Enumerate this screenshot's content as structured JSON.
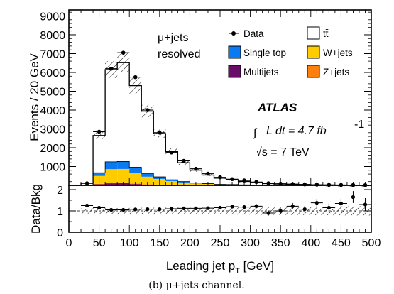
{
  "chart_data": [
    {
      "type": "bar",
      "ylabel": "Events / 20 GeV",
      "xlabel": "",
      "xlim": [
        0,
        500
      ],
      "ylim": [
        0,
        9000
      ],
      "yticks": [
        1000,
        2000,
        3000,
        4000,
        5000,
        6000,
        7000,
        8000,
        9000
      ],
      "bin_edges": [
        0,
        20,
        40,
        60,
        80,
        100,
        120,
        140,
        160,
        180,
        200,
        220,
        240,
        260,
        280,
        300,
        320,
        340,
        360,
        380,
        400,
        420,
        440,
        460,
        480,
        500
      ],
      "stacked": true,
      "series": [
        {
          "name": "Multijets",
          "color": "#6a0d6a",
          "values": [
            0,
            0,
            60,
            110,
            120,
            70,
            40,
            25,
            15,
            10,
            5,
            5,
            3,
            2,
            1,
            1,
            0,
            0,
            0,
            0,
            0,
            0,
            0,
            0,
            0
          ]
        },
        {
          "name": "Z+jets",
          "color": "#ff7f0e",
          "values": [
            0,
            0,
            20,
            40,
            40,
            30,
            20,
            15,
            10,
            6,
            4,
            3,
            2,
            1,
            1,
            1,
            0,
            0,
            0,
            0,
            0,
            0,
            0,
            0,
            0
          ]
        },
        {
          "name": "W+jets",
          "color": "#ffcc00",
          "values": [
            0,
            10,
            420,
            710,
            710,
            560,
            400,
            300,
            200,
            140,
            90,
            70,
            45,
            35,
            20,
            15,
            10,
            8,
            5,
            4,
            3,
            2,
            2,
            1,
            1
          ]
        },
        {
          "name": "Single top",
          "color": "#0a7af0",
          "values": [
            0,
            10,
            170,
            390,
            400,
            300,
            180,
            110,
            70,
            45,
            30,
            20,
            12,
            10,
            6,
            5,
            4,
            3,
            2,
            2,
            1,
            1,
            1,
            1,
            1
          ]
        },
        {
          "name": "tt̄",
          "color": "#ffffff",
          "values": [
            0,
            90,
            1980,
            4900,
            5250,
            4340,
            3300,
            2300,
            1500,
            1000,
            680,
            450,
            320,
            250,
            180,
            120,
            80,
            60,
            45,
            35,
            25,
            20,
            15,
            10,
            8
          ]
        }
      ],
      "data": {
        "name": "Data",
        "x": [
          30,
          50,
          70,
          90,
          110,
          130,
          150,
          170,
          190,
          210,
          230,
          250,
          270,
          290,
          310,
          330,
          350,
          370,
          390,
          410,
          430,
          450,
          470,
          490
        ],
        "y": [
          110,
          2850,
          6200,
          7050,
          5750,
          4000,
          2800,
          1750,
          1300,
          880,
          620,
          430,
          330,
          260,
          180,
          110,
          90,
          70,
          50,
          35,
          25,
          20,
          15,
          10
        ]
      },
      "legend": [
        "Data",
        "tt̄",
        "Single top",
        "W+jets",
        "Multijets",
        "Z+jets"
      ],
      "annotations": [
        "μ+jets",
        "resolved",
        "ATLAS",
        "L dt = 4.7 fb",
        "-1",
        "√s = 7 TeV"
      ]
    },
    {
      "type": "scatter",
      "ylabel": "Data/Bkg",
      "xlabel": "Leading jet p",
      "xlabel_sub": "T",
      "xlabel_unit": " [GeV]",
      "xlim": [
        0,
        500
      ],
      "ylim": [
        0,
        2.2
      ],
      "yticks": [
        0,
        1,
        2
      ],
      "xticks": [
        0,
        50,
        100,
        150,
        200,
        250,
        300,
        350,
        400,
        450,
        500
      ],
      "reference": 1,
      "x": [
        30,
        50,
        70,
        90,
        110,
        130,
        150,
        170,
        190,
        210,
        230,
        250,
        270,
        290,
        310,
        330,
        350,
        370,
        390,
        410,
        430,
        450,
        470,
        490
      ],
      "y": [
        1.25,
        1.15,
        1.05,
        1.05,
        1.07,
        1.08,
        1.08,
        1.1,
        1.12,
        1.12,
        1.13,
        1.15,
        1.2,
        1.18,
        1.22,
        0.9,
        1.0,
        1.22,
        1.08,
        1.38,
        1.15,
        1.35,
        1.65,
        1.3
      ],
      "yerr": [
        0.05,
        0.03,
        0.02,
        0.02,
        0.02,
        0.03,
        0.03,
        0.04,
        0.05,
        0.05,
        0.06,
        0.07,
        0.08,
        0.08,
        0.1,
        0.12,
        0.12,
        0.15,
        0.15,
        0.18,
        0.2,
        0.22,
        0.28,
        0.3
      ]
    }
  ],
  "caption": "(b) μ+jets channel."
}
